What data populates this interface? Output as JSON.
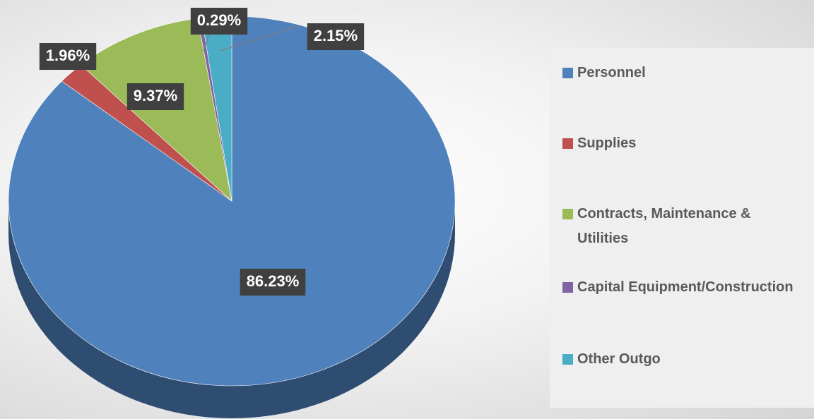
{
  "chart_data": {
    "type": "pie",
    "categories": [
      "Personnel",
      "Supplies",
      "Contracts, Maintenance & Utilities",
      "Capital Equipment/Construction",
      "Other Outgo"
    ],
    "values": [
      86.23,
      1.96,
      9.37,
      0.29,
      2.15
    ],
    "value_labels": [
      "86.23%",
      "1.96%",
      "9.37%",
      "0.29%",
      "2.15%"
    ],
    "colors": [
      "#4f81bd",
      "#c0504d",
      "#9bbb59",
      "#8064a2",
      "#4bacc6"
    ],
    "legend": "right"
  }
}
